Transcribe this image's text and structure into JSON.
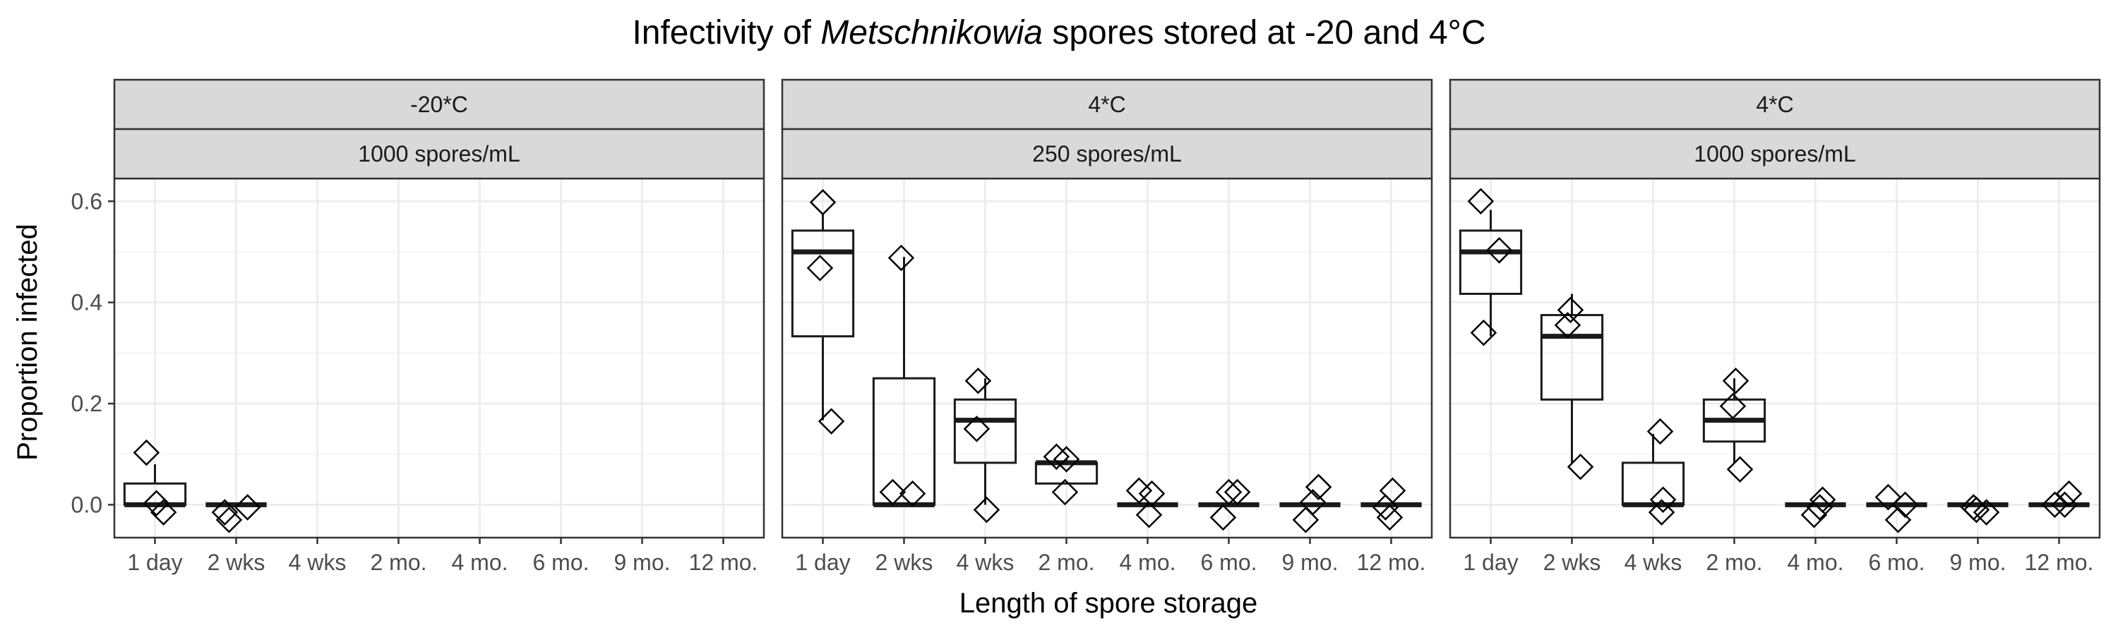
{
  "title": {
    "prefix": "Infectivity of ",
    "italic": "Metschnikowia",
    "suffix": " spores stored at -20 and 4°C"
  },
  "chart_data": {
    "type": "boxplot",
    "xlabel": "Length of spore storage",
    "ylabel": "Proportion infected",
    "categories": [
      "1 day",
      "2 wks",
      "4 wks",
      "2 mo.",
      "4 mo.",
      "6 mo.",
      "9 mo.",
      "12 mo."
    ],
    "ylim": [
      -0.065,
      0.645
    ],
    "yticks": [
      0.0,
      0.2,
      0.4,
      0.6
    ],
    "ytick_labels": [
      "0.0",
      "0.2",
      "0.4",
      "0.6"
    ],
    "grid": true,
    "legend": "none",
    "colors": {
      "strip_fill": "#d9d9d9",
      "strip_border": "#333333",
      "panel_border": "#333333",
      "grid_major": "#ebebeb",
      "grid_minor": "#f5f5f5",
      "box_line": "#1a1a1a",
      "point_stroke": "#000000"
    },
    "panels": [
      {
        "strip1": "-20*C",
        "strip2": "1000 spores/mL",
        "boxes": [
          {
            "category": "1 day",
            "q1": 0.0,
            "median": 0.0,
            "q3": 0.042,
            "whisker_low": 0.0,
            "whisker_high": 0.08
          },
          {
            "category": "2 wks",
            "q1": 0.0,
            "median": 0.0,
            "q3": 0.0,
            "whisker_low": 0.0,
            "whisker_high": 0.0
          }
        ],
        "points": [
          {
            "category": "1 day",
            "y": 0.103,
            "jitter": -0.3
          },
          {
            "category": "1 day",
            "y": 0.003,
            "jitter": 0.05
          },
          {
            "category": "1 day",
            "y": -0.015,
            "jitter": 0.3
          },
          {
            "category": "2 wks",
            "y": -0.015,
            "jitter": -0.4
          },
          {
            "category": "2 wks",
            "y": -0.03,
            "jitter": -0.25
          },
          {
            "category": "2 wks",
            "y": -0.005,
            "jitter": 0.4
          }
        ]
      },
      {
        "strip1": "4*C",
        "strip2": "250 spores/mL",
        "boxes": [
          {
            "category": "1 day",
            "q1": 0.333,
            "median": 0.5,
            "q3": 0.542,
            "whisker_low": 0.167,
            "whisker_high": 0.575
          },
          {
            "category": "2 wks",
            "q1": 0.0,
            "median": 0.0,
            "q3": 0.25,
            "whisker_low": 0.0,
            "whisker_high": 0.49
          },
          {
            "category": "4 wks",
            "q1": 0.083,
            "median": 0.167,
            "q3": 0.208,
            "whisker_low": 0.0,
            "whisker_high": 0.25
          },
          {
            "category": "2 mo.",
            "q1": 0.042,
            "median": 0.083,
            "q3": 0.083,
            "whisker_low": 0.042,
            "whisker_high": 0.09
          },
          {
            "category": "4 mo.",
            "q1": 0.0,
            "median": 0.0,
            "q3": 0.0,
            "whisker_low": 0.0,
            "whisker_high": 0.0
          },
          {
            "category": "6 mo.",
            "q1": 0.0,
            "median": 0.0,
            "q3": 0.0,
            "whisker_low": 0.0,
            "whisker_high": 0.0
          },
          {
            "category": "9 mo.",
            "q1": 0.0,
            "median": 0.0,
            "q3": 0.0,
            "whisker_low": 0.0,
            "whisker_high": 0.0
          },
          {
            "category": "12 mo.",
            "q1": 0.0,
            "median": 0.0,
            "q3": 0.0,
            "whisker_low": 0.0,
            "whisker_high": 0.0
          }
        ],
        "points": [
          {
            "category": "1 day",
            "y": 0.598,
            "jitter": 0.0
          },
          {
            "category": "1 day",
            "y": 0.468,
            "jitter": -0.1
          },
          {
            "category": "1 day",
            "y": 0.165,
            "jitter": 0.3
          },
          {
            "category": "2 wks",
            "y": 0.488,
            "jitter": -0.1
          },
          {
            "category": "2 wks",
            "y": 0.025,
            "jitter": -0.4
          },
          {
            "category": "2 wks",
            "y": 0.022,
            "jitter": 0.3
          },
          {
            "category": "4 wks",
            "y": 0.245,
            "jitter": -0.25
          },
          {
            "category": "4 wks",
            "y": 0.15,
            "jitter": -0.3
          },
          {
            "category": "4 wks",
            "y": -0.01,
            "jitter": 0.05
          },
          {
            "category": "2 mo.",
            "y": 0.095,
            "jitter": -0.35
          },
          {
            "category": "2 mo.",
            "y": 0.09,
            "jitter": 0.0
          },
          {
            "category": "2 mo.",
            "y": 0.025,
            "jitter": -0.05
          },
          {
            "category": "4 mo.",
            "y": 0.028,
            "jitter": -0.3
          },
          {
            "category": "4 mo.",
            "y": 0.022,
            "jitter": 0.15
          },
          {
            "category": "4 mo.",
            "y": -0.02,
            "jitter": 0.05
          },
          {
            "category": "6 mo.",
            "y": 0.025,
            "jitter": 0.0
          },
          {
            "category": "6 mo.",
            "y": 0.025,
            "jitter": 0.3
          },
          {
            "category": "6 mo.",
            "y": -0.025,
            "jitter": -0.2
          },
          {
            "category": "9 mo.",
            "y": 0.035,
            "jitter": 0.3
          },
          {
            "category": "9 mo.",
            "y": 0.005,
            "jitter": 0.1
          },
          {
            "category": "9 mo.",
            "y": -0.03,
            "jitter": -0.15
          },
          {
            "category": "12 mo.",
            "y": 0.028,
            "jitter": 0.05
          },
          {
            "category": "12 mo.",
            "y": -0.005,
            "jitter": -0.2
          },
          {
            "category": "12 mo.",
            "y": -0.025,
            "jitter": -0.05
          }
        ]
      },
      {
        "strip1": "4*C",
        "strip2": "1000 spores/mL",
        "boxes": [
          {
            "category": "1 day",
            "q1": 0.417,
            "median": 0.5,
            "q3": 0.542,
            "whisker_low": 0.333,
            "whisker_high": 0.583
          },
          {
            "category": "2 wks",
            "q1": 0.208,
            "median": 0.333,
            "q3": 0.375,
            "whisker_low": 0.083,
            "whisker_high": 0.417
          },
          {
            "category": "4 wks",
            "q1": 0.0,
            "median": 0.0,
            "q3": 0.083,
            "whisker_low": 0.0,
            "whisker_high": 0.14
          },
          {
            "category": "2 mo.",
            "q1": 0.125,
            "median": 0.167,
            "q3": 0.208,
            "whisker_low": 0.083,
            "whisker_high": 0.25
          },
          {
            "category": "4 mo.",
            "q1": 0.0,
            "median": 0.0,
            "q3": 0.0,
            "whisker_low": 0.0,
            "whisker_high": 0.0
          },
          {
            "category": "6 mo.",
            "q1": 0.0,
            "median": 0.0,
            "q3": 0.0,
            "whisker_low": 0.0,
            "whisker_high": 0.0
          },
          {
            "category": "9 mo.",
            "q1": 0.0,
            "median": 0.0,
            "q3": 0.0,
            "whisker_low": 0.0,
            "whisker_high": 0.0
          },
          {
            "category": "12 mo.",
            "q1": 0.0,
            "median": 0.0,
            "q3": 0.0,
            "whisker_low": 0.0,
            "whisker_high": 0.0
          }
        ],
        "points": [
          {
            "category": "1 day",
            "y": 0.6,
            "jitter": -0.35
          },
          {
            "category": "1 day",
            "y": 0.503,
            "jitter": 0.3
          },
          {
            "category": "1 day",
            "y": 0.34,
            "jitter": -0.25
          },
          {
            "category": "2 wks",
            "y": 0.385,
            "jitter": -0.05
          },
          {
            "category": "2 wks",
            "y": 0.355,
            "jitter": -0.15
          },
          {
            "category": "2 wks",
            "y": 0.075,
            "jitter": 0.3
          },
          {
            "category": "4 wks",
            "y": 0.145,
            "jitter": 0.25
          },
          {
            "category": "4 wks",
            "y": 0.01,
            "jitter": 0.35
          },
          {
            "category": "4 wks",
            "y": -0.015,
            "jitter": 0.3
          },
          {
            "category": "2 mo.",
            "y": 0.245,
            "jitter": 0.05
          },
          {
            "category": "2 mo.",
            "y": 0.195,
            "jitter": -0.05
          },
          {
            "category": "2 mo.",
            "y": 0.07,
            "jitter": 0.2
          },
          {
            "category": "4 mo.",
            "y": 0.01,
            "jitter": 0.25
          },
          {
            "category": "4 mo.",
            "y": -0.005,
            "jitter": 0.15
          },
          {
            "category": "4 mo.",
            "y": -0.02,
            "jitter": -0.05
          },
          {
            "category": "6 mo.",
            "y": 0.015,
            "jitter": -0.3
          },
          {
            "category": "6 mo.",
            "y": 0.0,
            "jitter": 0.3
          },
          {
            "category": "6 mo.",
            "y": -0.03,
            "jitter": 0.05
          },
          {
            "category": "9 mo.",
            "y": -0.005,
            "jitter": -0.15
          },
          {
            "category": "9 mo.",
            "y": -0.01,
            "jitter": -0.05
          },
          {
            "category": "9 mo.",
            "y": -0.015,
            "jitter": 0.3
          },
          {
            "category": "12 mo.",
            "y": 0.022,
            "jitter": 0.35
          },
          {
            "category": "12 mo.",
            "y": 0.0,
            "jitter": -0.15
          },
          {
            "category": "12 mo.",
            "y": 0.0,
            "jitter": 0.2
          }
        ]
      }
    ]
  }
}
